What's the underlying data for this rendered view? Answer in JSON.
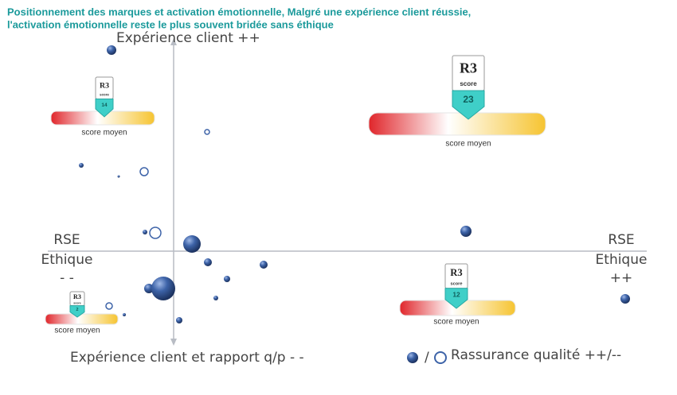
{
  "header": {
    "title_line1": "Positionnement des marques et activation émotionnelle, Malgré une expérience client réussie,",
    "title_line2": "l'activation émotionnelle reste le plus souvent bridée sans éthique"
  },
  "axes": {
    "top": "Expérience client  ++",
    "left": [
      "RSE",
      "Ethique",
      "- -"
    ],
    "right": [
      "RSE",
      "Ethique",
      "++"
    ],
    "bottom": "Expérience client et rapport q/p  - -"
  },
  "legend": {
    "separator": "/",
    "label": "Rassurance qualité ++/--"
  },
  "badges": [
    {
      "logo": "R3",
      "logo_sub": "score",
      "score": "14",
      "caption": "score moyen"
    },
    {
      "logo": "R3",
      "logo_sub": "score",
      "score": "23",
      "caption": "score moyen"
    },
    {
      "logo": "R3",
      "logo_sub": "score",
      "score": "2",
      "caption": "score moyen"
    },
    {
      "logo": "R3",
      "logo_sub": "score",
      "score": "12",
      "caption": "score moyen"
    }
  ]
}
